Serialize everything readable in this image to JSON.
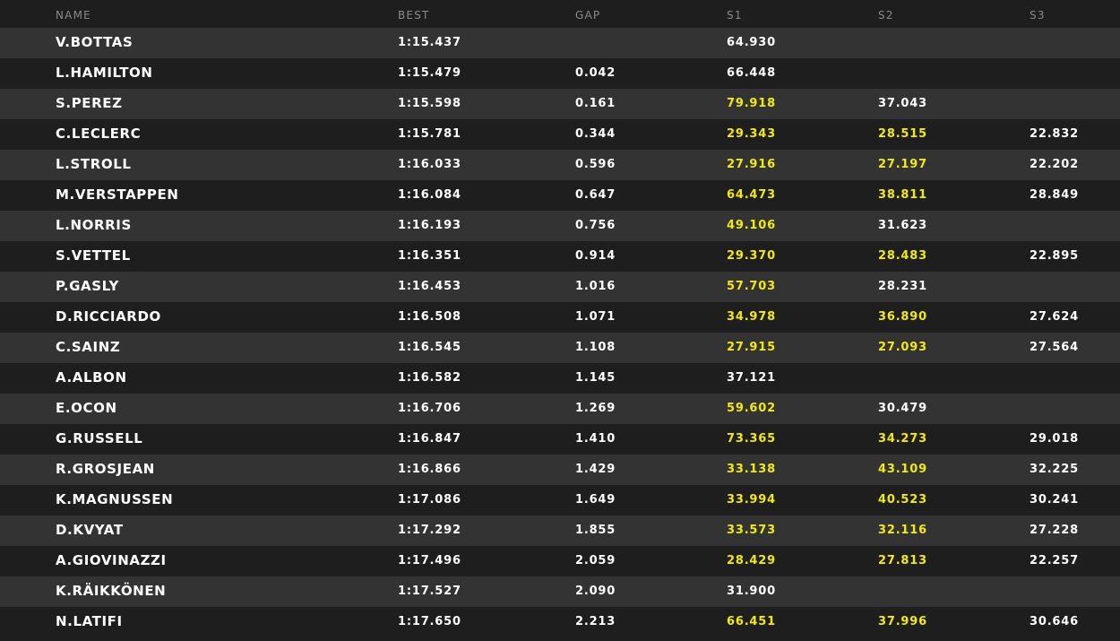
{
  "columns": {
    "name": "NAME",
    "best": "BEST",
    "gap": "GAP",
    "s1": "S1",
    "s2": "S2",
    "s3": "S3"
  },
  "colors": {
    "background_dark": "#1e1e1e",
    "background_light": "#333333",
    "text_white": "#ffffff",
    "text_yellow": "#f2ea0c",
    "header_gray": "#8a8a8a"
  },
  "rows": [
    {
      "name": "V.BOTTAS",
      "best": "1:15.437",
      "gap": "",
      "s1": {
        "value": "64.930",
        "highlight": false
      },
      "s2": {
        "value": "",
        "highlight": false
      },
      "s3": {
        "value": "",
        "highlight": false
      }
    },
    {
      "name": "L.HAMILTON",
      "best": "1:15.479",
      "gap": "0.042",
      "s1": {
        "value": "66.448",
        "highlight": false
      },
      "s2": {
        "value": "",
        "highlight": false
      },
      "s3": {
        "value": "",
        "highlight": false
      }
    },
    {
      "name": "S.PEREZ",
      "best": "1:15.598",
      "gap": "0.161",
      "s1": {
        "value": "79.918",
        "highlight": true
      },
      "s2": {
        "value": "37.043",
        "highlight": false
      },
      "s3": {
        "value": "",
        "highlight": false
      }
    },
    {
      "name": "C.LECLERC",
      "best": "1:15.781",
      "gap": "0.344",
      "s1": {
        "value": "29.343",
        "highlight": true
      },
      "s2": {
        "value": "28.515",
        "highlight": true
      },
      "s3": {
        "value": "22.832",
        "highlight": false
      }
    },
    {
      "name": "L.STROLL",
      "best": "1:16.033",
      "gap": "0.596",
      "s1": {
        "value": "27.916",
        "highlight": true
      },
      "s2": {
        "value": "27.197",
        "highlight": true
      },
      "s3": {
        "value": "22.202",
        "highlight": false
      }
    },
    {
      "name": "M.VERSTAPPEN",
      "best": "1:16.084",
      "gap": "0.647",
      "s1": {
        "value": "64.473",
        "highlight": true
      },
      "s2": {
        "value": "38.811",
        "highlight": true
      },
      "s3": {
        "value": "28.849",
        "highlight": false
      }
    },
    {
      "name": "L.NORRIS",
      "best": "1:16.193",
      "gap": "0.756",
      "s1": {
        "value": "49.106",
        "highlight": true
      },
      "s2": {
        "value": "31.623",
        "highlight": false
      },
      "s3": {
        "value": "",
        "highlight": false
      }
    },
    {
      "name": "S.VETTEL",
      "best": "1:16.351",
      "gap": "0.914",
      "s1": {
        "value": "29.370",
        "highlight": true
      },
      "s2": {
        "value": "28.483",
        "highlight": true
      },
      "s3": {
        "value": "22.895",
        "highlight": false
      }
    },
    {
      "name": "P.GASLY",
      "best": "1:16.453",
      "gap": "1.016",
      "s1": {
        "value": "57.703",
        "highlight": true
      },
      "s2": {
        "value": "28.231",
        "highlight": false
      },
      "s3": {
        "value": "",
        "highlight": false
      }
    },
    {
      "name": "D.RICCIARDO",
      "best": "1:16.508",
      "gap": "1.071",
      "s1": {
        "value": "34.978",
        "highlight": true
      },
      "s2": {
        "value": "36.890",
        "highlight": true
      },
      "s3": {
        "value": "27.624",
        "highlight": false
      }
    },
    {
      "name": "C.SAINZ",
      "best": "1:16.545",
      "gap": "1.108",
      "s1": {
        "value": "27.915",
        "highlight": true
      },
      "s2": {
        "value": "27.093",
        "highlight": true
      },
      "s3": {
        "value": "27.564",
        "highlight": false
      }
    },
    {
      "name": "A.ALBON",
      "best": "1:16.582",
      "gap": "1.145",
      "s1": {
        "value": "37.121",
        "highlight": false
      },
      "s2": {
        "value": "",
        "highlight": false
      },
      "s3": {
        "value": "",
        "highlight": false
      }
    },
    {
      "name": "E.OCON",
      "best": "1:16.706",
      "gap": "1.269",
      "s1": {
        "value": "59.602",
        "highlight": true
      },
      "s2": {
        "value": "30.479",
        "highlight": false
      },
      "s3": {
        "value": "",
        "highlight": false
      }
    },
    {
      "name": "G.RUSSELL",
      "best": "1:16.847",
      "gap": "1.410",
      "s1": {
        "value": "73.365",
        "highlight": true
      },
      "s2": {
        "value": "34.273",
        "highlight": true
      },
      "s3": {
        "value": "29.018",
        "highlight": false
      }
    },
    {
      "name": "R.GROSJEAN",
      "best": "1:16.866",
      "gap": "1.429",
      "s1": {
        "value": "33.138",
        "highlight": true
      },
      "s2": {
        "value": "43.109",
        "highlight": true
      },
      "s3": {
        "value": "32.225",
        "highlight": false
      }
    },
    {
      "name": "K.MAGNUSSEN",
      "best": "1:17.086",
      "gap": "1.649",
      "s1": {
        "value": "33.994",
        "highlight": true
      },
      "s2": {
        "value": "40.523",
        "highlight": true
      },
      "s3": {
        "value": "30.241",
        "highlight": false
      }
    },
    {
      "name": "D.KVYAT",
      "best": "1:17.292",
      "gap": "1.855",
      "s1": {
        "value": "33.573",
        "highlight": true
      },
      "s2": {
        "value": "32.116",
        "highlight": true
      },
      "s3": {
        "value": "27.228",
        "highlight": false
      }
    },
    {
      "name": "A.GIOVINAZZI",
      "best": "1:17.496",
      "gap": "2.059",
      "s1": {
        "value": "28.429",
        "highlight": true
      },
      "s2": {
        "value": "27.813",
        "highlight": true
      },
      "s3": {
        "value": "22.257",
        "highlight": false
      }
    },
    {
      "name": "K.RÄIKKÖNEN",
      "best": "1:17.527",
      "gap": "2.090",
      "s1": {
        "value": "31.900",
        "highlight": false
      },
      "s2": {
        "value": "",
        "highlight": false
      },
      "s3": {
        "value": "",
        "highlight": false
      }
    },
    {
      "name": "N.LATIFI",
      "best": "1:17.650",
      "gap": "2.213",
      "s1": {
        "value": "66.451",
        "highlight": true
      },
      "s2": {
        "value": "37.996",
        "highlight": true
      },
      "s3": {
        "value": "30.646",
        "highlight": false
      }
    }
  ]
}
